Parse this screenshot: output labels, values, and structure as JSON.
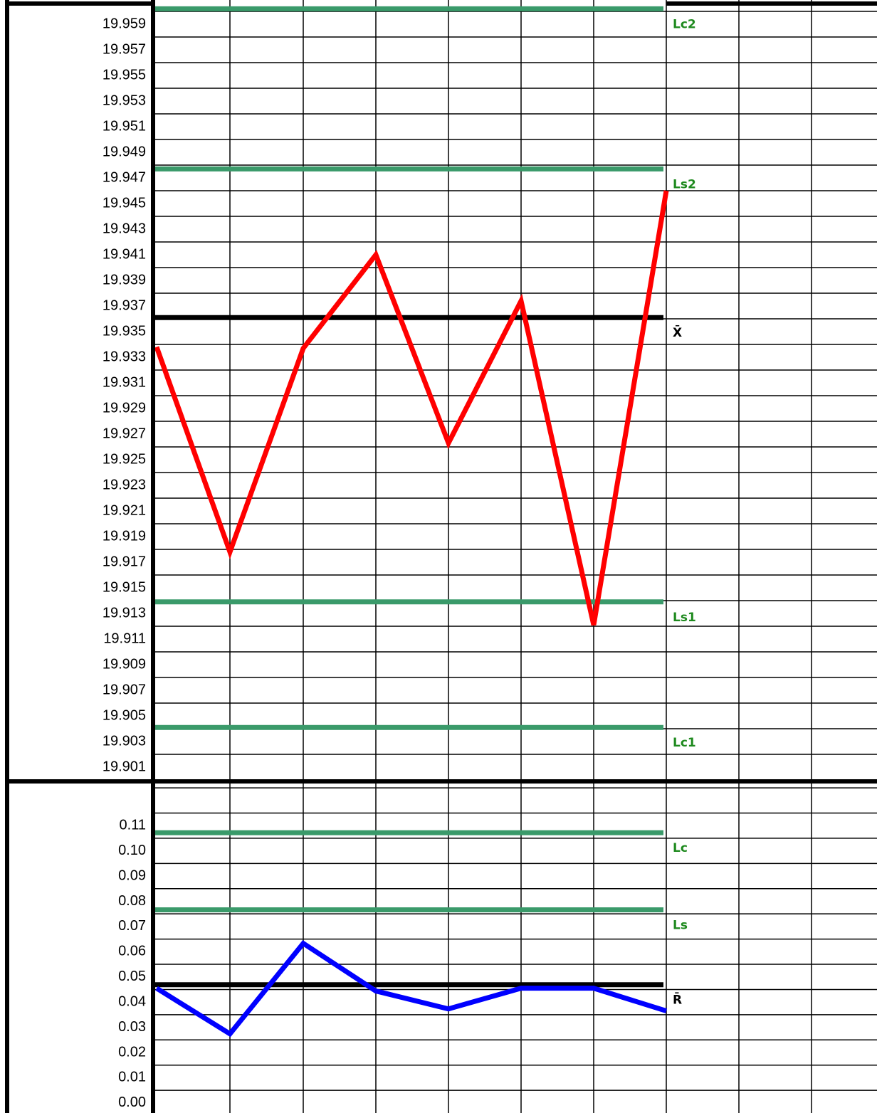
{
  "chart_data": [
    {
      "type": "line",
      "categories": [
        null,
        null,
        null,
        null,
        null,
        null,
        null,
        null
      ],
      "series": [
        {
          "color": "#ff0000",
          "values": [
            19.9338,
            19.9178,
            19.9337,
            19.941,
            19.9263,
            19.9374,
            19.9121,
            19.946
          ]
        }
      ],
      "control_lines": [
        {
          "name": "Lc2",
          "value": 19.9602,
          "color": "#3a9a6a",
          "label_color": "#1f8a1f"
        },
        {
          "name": "Ls2",
          "value": 19.9477,
          "color": "#3a9a6a",
          "label_color": "#1f8a1f"
        },
        {
          "name": "X̄",
          "value": 19.9361,
          "color": "#000000",
          "label_color": "#000000"
        },
        {
          "name": "Ls1",
          "value": 19.9139,
          "color": "#3a9a6a",
          "label_color": "#1f8a1f"
        },
        {
          "name": "Lc1",
          "value": 19.9041,
          "color": "#3a9a6a",
          "label_color": "#1f8a1f"
        }
      ],
      "ylim": [
        19.9,
        19.9605
      ],
      "yticks": [
        19.901,
        19.903,
        19.905,
        19.907,
        19.909,
        19.911,
        19.913,
        19.915,
        19.917,
        19.919,
        19.921,
        19.923,
        19.925,
        19.927,
        19.929,
        19.931,
        19.933,
        19.935,
        19.937,
        19.939,
        19.941,
        19.943,
        19.945,
        19.947,
        19.949,
        19.951,
        19.953,
        19.955,
        19.957,
        19.959
      ],
      "grid": true
    },
    {
      "type": "line",
      "categories": [
        null,
        null,
        null,
        null,
        null,
        null,
        null,
        null
      ],
      "series": [
        {
          "color": "#0000ff",
          "values": [
            0.0455,
            0.0274,
            0.0633,
            0.0444,
            0.0373,
            0.0455,
            0.0455,
            0.0365
          ]
        }
      ],
      "control_lines": [
        {
          "name": "Lc",
          "value": 0.1072,
          "color": "#3a9a6a",
          "label_color": "#1f8a1f"
        },
        {
          "name": "Ls",
          "value": 0.0766,
          "color": "#3a9a6a",
          "label_color": "#1f8a1f"
        },
        {
          "name": "R̄",
          "value": 0.0469,
          "color": "#000000",
          "label_color": "#000000"
        }
      ],
      "ylim": [
        -0.004,
        0.127
      ],
      "yticks": [
        {
          "value": 0,
          "label": "0.00"
        },
        {
          "value": 0.01,
          "label": "0.01"
        },
        {
          "value": 0.02,
          "label": "0.02"
        },
        {
          "value": 0.03,
          "label": "0.03"
        },
        {
          "value": 0.04,
          "label": "0.04"
        },
        {
          "value": 0.05,
          "label": "0.05"
        },
        {
          "value": 0.06,
          "label": "0.06"
        },
        {
          "value": 0.07,
          "label": "0.07"
        },
        {
          "value": 0.08,
          "label": "0.08"
        },
        {
          "value": 0.09,
          "label": "0.09"
        },
        {
          "value": 0.1,
          "label": "0.10"
        },
        0.11
      ],
      "grid": true
    }
  ]
}
